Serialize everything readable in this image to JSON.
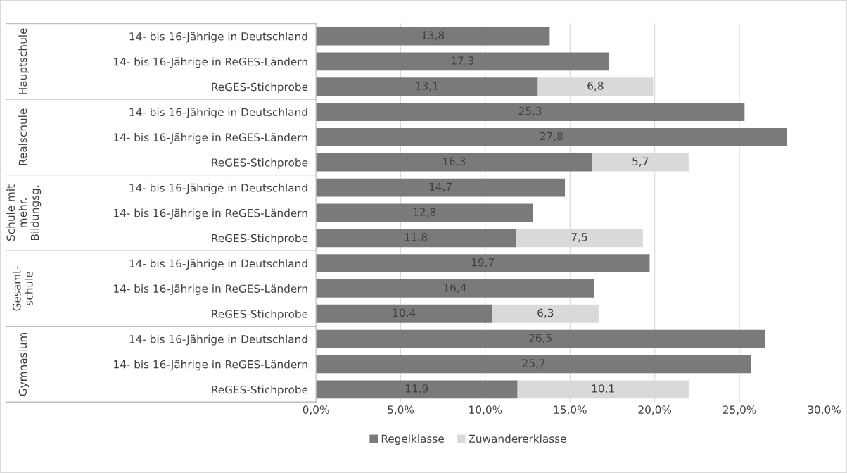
{
  "chart_data": {
    "type": "bar",
    "orientation": "horizontal",
    "stacked": true,
    "categories": [
      "14- bis 16-Jährige in Deutschland",
      "14- bis 16-Jährige in ReGES-Ländern",
      "ReGES-Stichprobe",
      "14- bis 16-Jährige in Deutschland",
      "14- bis 16-Jährige in ReGES-Ländern",
      "ReGES-Stichprobe",
      "14- bis 16-Jährige in Deutschland",
      "14- bis 16-Jährige in ReGES-Ländern",
      "ReGES-Stichprobe",
      "14- bis 16-Jährige in Deutschland",
      "14- bis 16-Jährige in ReGES-Ländern",
      "ReGES-Stichprobe",
      "14- bis 16-Jährige in Deutschland",
      "14- bis 16-Jährige in ReGES-Ländern",
      "ReGES-Stichprobe"
    ],
    "series": [
      {
        "name": "Regelklasse",
        "color": "#7a7a7a",
        "values": [
          13.8,
          17.3,
          13.1,
          25.3,
          27.8,
          16.3,
          14.7,
          12.8,
          11.8,
          19.7,
          16.4,
          10.4,
          26.5,
          25.7,
          11.9
        ],
        "value_labels": [
          "13,8",
          "17,3",
          "13,1",
          "25,3",
          "27,8",
          "16,3",
          "14,7",
          "12,8",
          "11,8",
          "19,7",
          "16,4",
          "10,4",
          "26,5",
          "25,7",
          "11,9"
        ]
      },
      {
        "name": "Zuwandererklasse",
        "color": "#d9d9d9",
        "values": [
          null,
          null,
          6.8,
          null,
          null,
          5.7,
          null,
          null,
          7.5,
          null,
          null,
          6.3,
          null,
          null,
          10.1
        ],
        "value_labels": [
          null,
          null,
          "6,8",
          null,
          null,
          "5,7",
          null,
          null,
          "7,5",
          null,
          null,
          "6,3",
          null,
          null,
          "10,1"
        ]
      }
    ],
    "xlim": [
      0,
      30
    ],
    "xticks": [
      {
        "value": 0,
        "label": "0,0%"
      },
      {
        "value": 5,
        "label": "5,0%"
      },
      {
        "value": 10,
        "label": "10,0%"
      },
      {
        "value": 15,
        "label": "15,0%"
      },
      {
        "value": 20,
        "label": "20,0%"
      },
      {
        "value": 25,
        "label": "25,0%"
      },
      {
        "value": 30,
        "label": "30,0%"
      }
    ],
    "annotations": [
      "Hauptschule",
      "Realschule",
      "Schule mit\nmehr.\nBildungsg.",
      "Gesamt-\nschule",
      "Gymnasium"
    ],
    "grid": "x",
    "legend": "bottom"
  }
}
